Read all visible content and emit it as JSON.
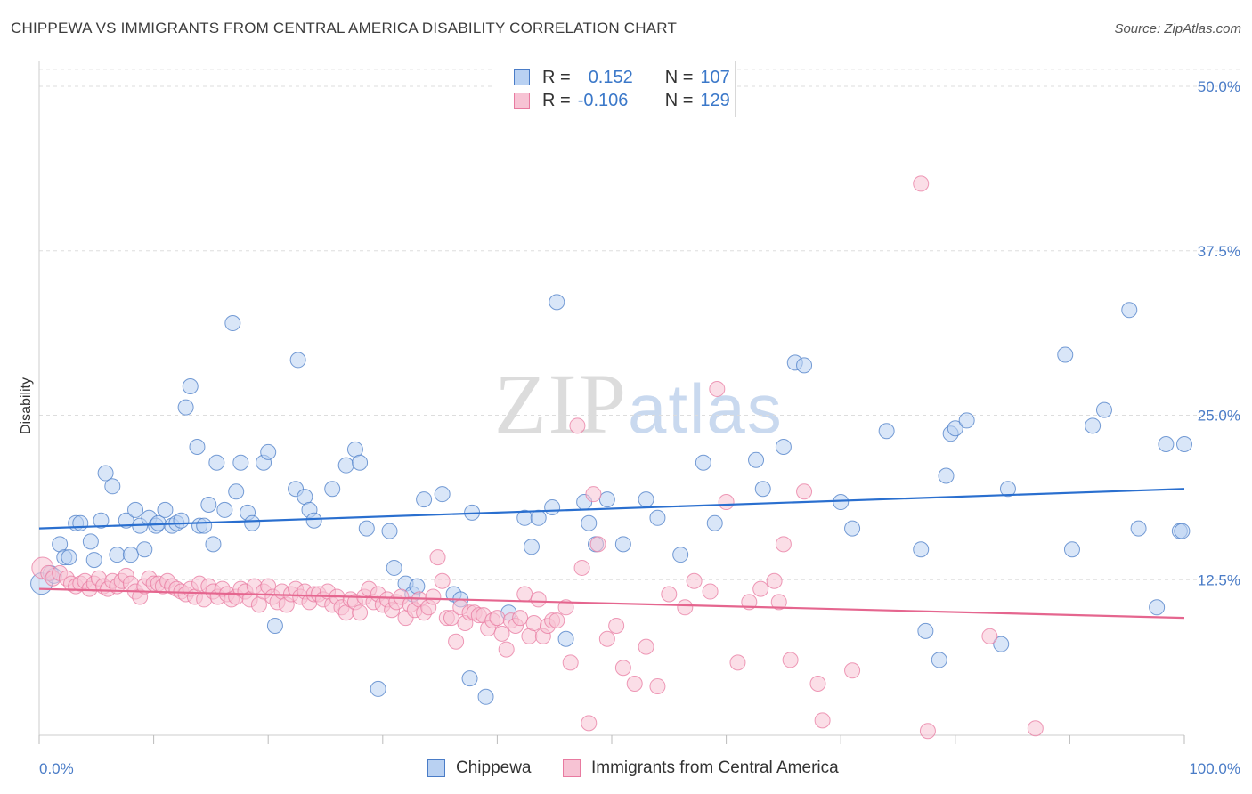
{
  "title": "CHIPPEWA VS IMMIGRANTS FROM CENTRAL AMERICA DISABILITY CORRELATION CHART",
  "source": "Source: ZipAtlas.com",
  "watermark": {
    "zip": "ZIP",
    "atlas": "atlas"
  },
  "legend": {
    "rows": [
      {
        "r_label": "R =",
        "r_value": "0.152",
        "n_label": "N =",
        "n_value": "107"
      },
      {
        "r_label": "R =",
        "r_value": "-0.106",
        "n_label": "N =",
        "n_value": "129"
      }
    ]
  },
  "bottom_legend": {
    "series1": "Chippewa",
    "series2": "Immigrants from Central America"
  },
  "colors": {
    "blue": "#4a7cc7",
    "blue_fill": "#b9d1f2",
    "blue_line": "#2a6fcf",
    "pink": "#e87aa0",
    "pink_fill": "#f7c3d4",
    "pink_line": "#e5668f"
  },
  "chart_data": {
    "type": "scatter",
    "title": "CHIPPEWA VS IMMIGRANTS FROM CENTRAL AMERICA DISABILITY CORRELATION CHART",
    "xlabel": "",
    "ylabel": "Disability",
    "xlim": [
      0,
      100
    ],
    "ylim": [
      0,
      50
    ],
    "x_tick_labels": [
      "0.0%",
      "100.0%"
    ],
    "y_ticks": [
      12.5,
      25.0,
      37.5,
      50.0
    ],
    "y_tick_labels": [
      "12.5%",
      "25.0%",
      "37.5%",
      "50.0%"
    ],
    "grid": true,
    "legend_position": "top-center",
    "series": [
      {
        "name": "Chippewa",
        "r": 0.152,
        "n": 107,
        "trend": {
          "x": [
            0,
            100
          ],
          "y": [
            16.4,
            19.4
          ]
        },
        "points": [
          [
            0.2,
            12.2
          ],
          [
            1.0,
            13.0
          ],
          [
            1.3,
            12.8
          ],
          [
            1.8,
            15.2
          ],
          [
            2.2,
            14.2
          ],
          [
            2.6,
            14.2
          ],
          [
            3.2,
            16.8
          ],
          [
            3.6,
            16.8
          ],
          [
            4.5,
            15.4
          ],
          [
            4.8,
            14.0
          ],
          [
            5.4,
            17.0
          ],
          [
            5.8,
            20.6
          ],
          [
            6.4,
            19.6
          ],
          [
            6.8,
            14.4
          ],
          [
            7.6,
            17.0
          ],
          [
            8.0,
            14.4
          ],
          [
            8.4,
            17.8
          ],
          [
            8.8,
            16.6
          ],
          [
            9.2,
            14.8
          ],
          [
            9.6,
            17.2
          ],
          [
            10.2,
            16.6
          ],
          [
            10.4,
            16.8
          ],
          [
            11.0,
            17.8
          ],
          [
            11.6,
            16.6
          ],
          [
            12.0,
            16.8
          ],
          [
            12.4,
            17.0
          ],
          [
            12.8,
            25.6
          ],
          [
            13.2,
            27.2
          ],
          [
            13.8,
            22.6
          ],
          [
            14.0,
            16.6
          ],
          [
            14.4,
            16.6
          ],
          [
            14.8,
            18.2
          ],
          [
            15.2,
            15.2
          ],
          [
            15.5,
            21.4
          ],
          [
            16.2,
            17.8
          ],
          [
            16.9,
            32.0
          ],
          [
            17.2,
            19.2
          ],
          [
            17.6,
            21.4
          ],
          [
            18.2,
            17.6
          ],
          [
            18.6,
            16.8
          ],
          [
            19.6,
            21.4
          ],
          [
            20.0,
            22.2
          ],
          [
            20.6,
            9.0
          ],
          [
            22.4,
            19.4
          ],
          [
            22.6,
            29.2
          ],
          [
            23.2,
            18.8
          ],
          [
            23.6,
            17.8
          ],
          [
            24.0,
            17.0
          ],
          [
            25.6,
            19.4
          ],
          [
            26.8,
            21.2
          ],
          [
            27.6,
            22.4
          ],
          [
            28.0,
            21.4
          ],
          [
            28.6,
            16.4
          ],
          [
            29.6,
            4.2
          ],
          [
            30.6,
            16.2
          ],
          [
            31.0,
            13.4
          ],
          [
            32.0,
            12.2
          ],
          [
            32.6,
            11.4
          ],
          [
            33.0,
            12.0
          ],
          [
            33.6,
            18.6
          ],
          [
            35.2,
            19.0
          ],
          [
            36.2,
            11.4
          ],
          [
            36.8,
            11.0
          ],
          [
            37.6,
            5.0
          ],
          [
            37.8,
            17.6
          ],
          [
            39.0,
            3.6
          ],
          [
            41.0,
            10.0
          ],
          [
            42.4,
            17.2
          ],
          [
            43.0,
            15.0
          ],
          [
            43.6,
            17.2
          ],
          [
            44.8,
            18.0
          ],
          [
            45.2,
            33.6
          ],
          [
            46.0,
            8.0
          ],
          [
            47.6,
            18.4
          ],
          [
            48.0,
            16.8
          ],
          [
            48.6,
            15.2
          ],
          [
            49.6,
            18.6
          ],
          [
            51.0,
            15.2
          ],
          [
            53.0,
            18.6
          ],
          [
            54.0,
            17.2
          ],
          [
            56.0,
            14.4
          ],
          [
            58.0,
            21.4
          ],
          [
            59.0,
            16.8
          ],
          [
            62.6,
            21.6
          ],
          [
            63.2,
            19.4
          ],
          [
            65.0,
            22.6
          ],
          [
            66.0,
            29.0
          ],
          [
            66.8,
            28.8
          ],
          [
            70.0,
            18.4
          ],
          [
            71.0,
            16.4
          ],
          [
            74.0,
            23.8
          ],
          [
            77.0,
            14.8
          ],
          [
            77.4,
            8.6
          ],
          [
            78.6,
            6.4
          ],
          [
            79.2,
            20.4
          ],
          [
            79.6,
            23.6
          ],
          [
            80.0,
            24.0
          ],
          [
            81.0,
            24.6
          ],
          [
            84.0,
            7.6
          ],
          [
            84.6,
            19.4
          ],
          [
            89.6,
            29.6
          ],
          [
            90.2,
            14.8
          ],
          [
            92.0,
            24.2
          ],
          [
            93.0,
            25.4
          ],
          [
            95.2,
            33.0
          ],
          [
            96.0,
            16.4
          ],
          [
            97.6,
            10.4
          ],
          [
            98.4,
            22.8
          ],
          [
            99.6,
            16.2
          ],
          [
            99.8,
            16.2
          ],
          [
            100.0,
            22.8
          ]
        ]
      },
      {
        "name": "Immigrants from Central America",
        "r": -0.106,
        "n": 129,
        "trend": {
          "x": [
            0,
            100
          ],
          "y": [
            11.8,
            9.6
          ]
        },
        "points": [
          [
            0.3,
            13.4
          ],
          [
            0.8,
            13.0
          ],
          [
            1.2,
            12.6
          ],
          [
            1.8,
            13.0
          ],
          [
            2.4,
            12.6
          ],
          [
            2.8,
            12.2
          ],
          [
            3.2,
            12.0
          ],
          [
            3.6,
            12.2
          ],
          [
            4.0,
            12.4
          ],
          [
            4.4,
            11.8
          ],
          [
            4.8,
            12.2
          ],
          [
            5.2,
            12.6
          ],
          [
            5.6,
            12.0
          ],
          [
            6.0,
            11.8
          ],
          [
            6.4,
            12.4
          ],
          [
            6.8,
            12.0
          ],
          [
            7.2,
            12.4
          ],
          [
            7.6,
            12.8
          ],
          [
            8.0,
            12.2
          ],
          [
            8.4,
            11.6
          ],
          [
            8.8,
            11.2
          ],
          [
            9.2,
            12.0
          ],
          [
            9.6,
            12.6
          ],
          [
            10.0,
            12.2
          ],
          [
            10.4,
            12.2
          ],
          [
            10.8,
            12.0
          ],
          [
            11.2,
            12.4
          ],
          [
            11.6,
            12.0
          ],
          [
            12.0,
            11.8
          ],
          [
            12.4,
            11.6
          ],
          [
            12.8,
            11.4
          ],
          [
            13.2,
            11.8
          ],
          [
            13.6,
            11.2
          ],
          [
            14.0,
            12.2
          ],
          [
            14.4,
            11.0
          ],
          [
            14.8,
            12.0
          ],
          [
            15.2,
            11.6
          ],
          [
            15.6,
            11.2
          ],
          [
            16.0,
            11.8
          ],
          [
            16.4,
            11.4
          ],
          [
            16.8,
            11.0
          ],
          [
            17.2,
            11.2
          ],
          [
            17.6,
            11.8
          ],
          [
            18.0,
            11.6
          ],
          [
            18.4,
            11.0
          ],
          [
            18.8,
            12.0
          ],
          [
            19.2,
            10.6
          ],
          [
            19.6,
            11.6
          ],
          [
            20.0,
            12.0
          ],
          [
            20.4,
            11.2
          ],
          [
            20.8,
            10.8
          ],
          [
            21.2,
            11.6
          ],
          [
            21.6,
            10.6
          ],
          [
            22.0,
            11.4
          ],
          [
            22.4,
            11.8
          ],
          [
            22.8,
            11.2
          ],
          [
            23.2,
            11.6
          ],
          [
            23.6,
            10.8
          ],
          [
            24.0,
            11.4
          ],
          [
            24.4,
            11.4
          ],
          [
            24.8,
            11.0
          ],
          [
            25.2,
            11.6
          ],
          [
            25.6,
            10.6
          ],
          [
            26.0,
            11.2
          ],
          [
            26.4,
            10.4
          ],
          [
            26.8,
            10.0
          ],
          [
            27.2,
            11.0
          ],
          [
            27.6,
            10.8
          ],
          [
            28.0,
            10.0
          ],
          [
            28.4,
            11.2
          ],
          [
            28.8,
            11.8
          ],
          [
            29.2,
            10.8
          ],
          [
            29.6,
            11.4
          ],
          [
            30.0,
            10.6
          ],
          [
            30.4,
            11.0
          ],
          [
            30.8,
            10.2
          ],
          [
            31.2,
            10.8
          ],
          [
            31.6,
            11.2
          ],
          [
            32.0,
            9.6
          ],
          [
            32.4,
            10.6
          ],
          [
            32.8,
            10.2
          ],
          [
            33.2,
            11.0
          ],
          [
            33.6,
            10.0
          ],
          [
            34.0,
            10.4
          ],
          [
            34.4,
            11.2
          ],
          [
            34.8,
            14.2
          ],
          [
            35.2,
            12.4
          ],
          [
            35.6,
            9.6
          ],
          [
            36.0,
            9.6
          ],
          [
            36.4,
            7.8
          ],
          [
            36.8,
            10.4
          ],
          [
            37.2,
            9.2
          ],
          [
            37.6,
            10.0
          ],
          [
            38.0,
            10.0
          ],
          [
            38.4,
            9.8
          ],
          [
            38.8,
            9.8
          ],
          [
            39.2,
            8.8
          ],
          [
            39.6,
            9.4
          ],
          [
            40.0,
            9.6
          ],
          [
            40.4,
            8.4
          ],
          [
            40.8,
            7.2
          ],
          [
            41.2,
            9.4
          ],
          [
            41.6,
            9.0
          ],
          [
            42.0,
            9.6
          ],
          [
            42.4,
            11.4
          ],
          [
            42.8,
            8.2
          ],
          [
            43.2,
            9.2
          ],
          [
            43.6,
            11.0
          ],
          [
            44.0,
            8.2
          ],
          [
            44.4,
            9.0
          ],
          [
            44.8,
            9.4
          ],
          [
            45.2,
            9.4
          ],
          [
            46.0,
            10.4
          ],
          [
            46.4,
            6.2
          ],
          [
            47.0,
            24.2
          ],
          [
            47.4,
            13.4
          ],
          [
            48.0,
            1.6
          ],
          [
            48.4,
            19.0
          ],
          [
            48.8,
            15.2
          ],
          [
            49.6,
            8.0
          ],
          [
            50.4,
            9.0
          ],
          [
            51.0,
            5.8
          ],
          [
            52.0,
            4.6
          ],
          [
            53.0,
            7.4
          ],
          [
            54.0,
            4.4
          ],
          [
            55.0,
            11.4
          ],
          [
            56.4,
            10.4
          ],
          [
            57.2,
            12.4
          ],
          [
            58.6,
            11.6
          ],
          [
            59.2,
            27.0
          ],
          [
            60.0,
            18.4
          ],
          [
            61.0,
            6.2
          ],
          [
            62.0,
            10.8
          ],
          [
            63.0,
            11.8
          ],
          [
            64.2,
            12.4
          ],
          [
            64.6,
            10.8
          ],
          [
            65.0,
            15.2
          ],
          [
            65.6,
            6.4
          ],
          [
            66.8,
            19.2
          ],
          [
            68.0,
            4.6
          ],
          [
            68.4,
            1.8
          ],
          [
            71.0,
            5.6
          ],
          [
            77.0,
            42.6
          ],
          [
            77.6,
            1.0
          ],
          [
            83.0,
            8.2
          ],
          [
            87.0,
            1.2
          ]
        ]
      }
    ]
  }
}
